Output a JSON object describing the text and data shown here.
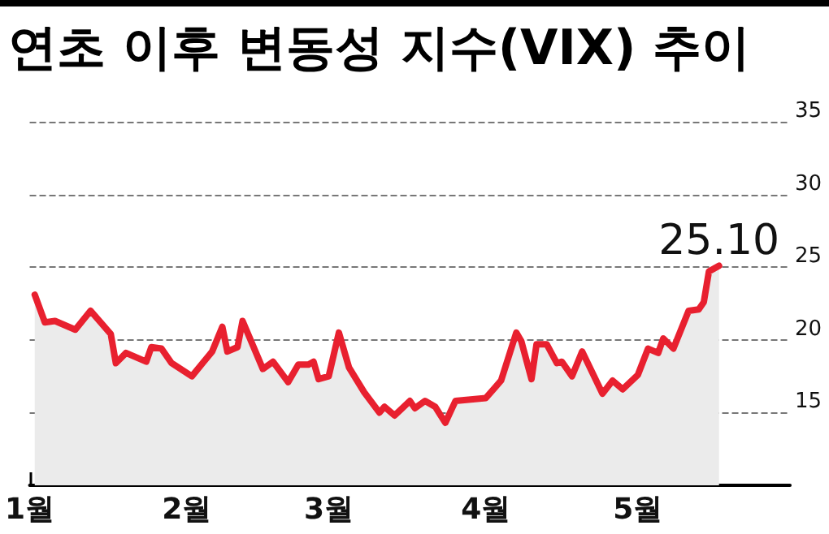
{
  "chart_data": {
    "type": "area",
    "title": "연초 이후 변동성 지수(VIX) 추이",
    "x": [
      "--01-02",
      "--01-04",
      "--01-06",
      "--01-10",
      "--01-13",
      "--01-17",
      "--01-18",
      "--01-20",
      "--01-24",
      "--01-25",
      "--01-27",
      "--01-29",
      "--02-02",
      "--02-06",
      "--02-08",
      "--02-09",
      "--02-11",
      "--02-12",
      "--02-16",
      "--02-18",
      "--02-21",
      "--02-23",
      "--02-25",
      "--02-26",
      "--02-27",
      "--03-01",
      "--03-03",
      "--03-05",
      "--03-08",
      "--03-11",
      "--03-12",
      "--03-14",
      "--03-17",
      "--03-18",
      "--03-20",
      "--03-22",
      "--03-24",
      "--03-26",
      "--04-01",
      "--04-03",
      "--04-04",
      "--04-07",
      "--04-08",
      "--04-10",
      "--04-11",
      "--04-13",
      "--04-15",
      "--04-16",
      "--04-18",
      "--04-20",
      "--04-24",
      "--04-26",
      "--04-28",
      "--05-01",
      "--05-03",
      "--05-05",
      "--05-06",
      "--05-08",
      "--05-11",
      "--05-13",
      "--05-14",
      "--05-15",
      "--05-17"
    ],
    "series": [
      {
        "color": "#e8202f",
        "values": [
          23.1,
          21.2,
          21.3,
          20.7,
          22.0,
          20.4,
          18.4,
          19.1,
          18.5,
          19.5,
          19.4,
          18.4,
          17.5,
          19.2,
          20.9,
          19.2,
          19.5,
          21.3,
          18.0,
          18.5,
          17.1,
          18.3,
          18.3,
          18.5,
          17.3,
          17.5,
          20.5,
          18.1,
          16.4,
          15.0,
          15.4,
          14.8,
          15.8,
          15.3,
          15.8,
          15.4,
          14.3,
          15.8,
          16.0,
          16.8,
          17.2,
          20.5,
          19.9,
          17.3,
          19.7,
          19.7,
          18.4,
          18.5,
          17.5,
          19.2,
          16.3,
          17.2,
          16.6,
          17.6,
          19.4,
          19.1,
          20.1,
          19.4,
          22.0,
          22.1,
          22.6,
          24.7,
          25.1
        ]
      }
    ],
    "xlim": [
      "--01-01",
      "--05-31"
    ],
    "xticks": [
      {
        "value": "--01-01",
        "label": "1월"
      },
      {
        "value": "--02-01",
        "label": "2월"
      },
      {
        "value": "--03-01",
        "label": "3월"
      },
      {
        "value": "--04-01",
        "label": "4월"
      },
      {
        "value": "--05-01",
        "label": "5월"
      }
    ],
    "ylim": [
      10,
      35
    ],
    "yticks": [
      15,
      20,
      25,
      30,
      35
    ],
    "annotations": [
      {
        "text": "25.10",
        "x": "--05-17",
        "y": 25.1
      }
    ],
    "grid": "y",
    "marker": "none",
    "line_style": "solid"
  }
}
